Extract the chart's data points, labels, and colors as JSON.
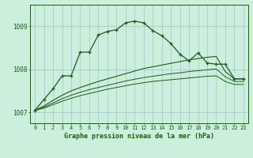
{
  "xlabel": "Graphe pression niveau de la mer (hPa)",
  "background_color": "#cceedd",
  "grid_color": "#aacccc",
  "line_color": "#1a5c1a",
  "ylim": [
    1006.75,
    1009.5
  ],
  "yticks": [
    1007,
    1008,
    1009
  ],
  "xlim": [
    -0.5,
    23.5
  ],
  "x_ticks": [
    0,
    1,
    2,
    3,
    4,
    5,
    6,
    7,
    8,
    9,
    10,
    11,
    12,
    13,
    14,
    15,
    16,
    17,
    18,
    19,
    20,
    21,
    22,
    23
  ],
  "series1_x": [
    0,
    1,
    2,
    3,
    4,
    5,
    6,
    7,
    8,
    9,
    10,
    11,
    12,
    13,
    14,
    15,
    16,
    17,
    18,
    19,
    20,
    21,
    22,
    23
  ],
  "series1": [
    1007.05,
    1007.3,
    1007.55,
    1007.85,
    1007.85,
    1008.4,
    1008.4,
    1008.8,
    1008.88,
    1008.92,
    1009.08,
    1009.12,
    1009.08,
    1008.9,
    1008.78,
    1008.6,
    1008.35,
    1008.2,
    1008.38,
    1008.15,
    1008.12,
    1008.12,
    1007.78,
    1007.78
  ],
  "series2": [
    1007.05,
    1007.15,
    1007.28,
    1007.4,
    1007.5,
    1007.58,
    1007.65,
    1007.72,
    1007.78,
    1007.84,
    1007.9,
    1007.96,
    1008.02,
    1008.06,
    1008.1,
    1008.14,
    1008.18,
    1008.22,
    1008.25,
    1008.28,
    1008.3,
    1007.95,
    1007.78,
    1007.78
  ],
  "series3": [
    1007.05,
    1007.12,
    1007.22,
    1007.32,
    1007.4,
    1007.47,
    1007.53,
    1007.58,
    1007.63,
    1007.68,
    1007.73,
    1007.77,
    1007.81,
    1007.84,
    1007.87,
    1007.9,
    1007.92,
    1007.95,
    1007.97,
    1007.99,
    1008.01,
    1007.83,
    1007.72,
    1007.72
  ],
  "series4": [
    1007.05,
    1007.1,
    1007.18,
    1007.26,
    1007.33,
    1007.39,
    1007.44,
    1007.49,
    1007.54,
    1007.58,
    1007.62,
    1007.66,
    1007.69,
    1007.72,
    1007.74,
    1007.76,
    1007.78,
    1007.8,
    1007.82,
    1007.84,
    1007.85,
    1007.72,
    1007.65,
    1007.65
  ]
}
